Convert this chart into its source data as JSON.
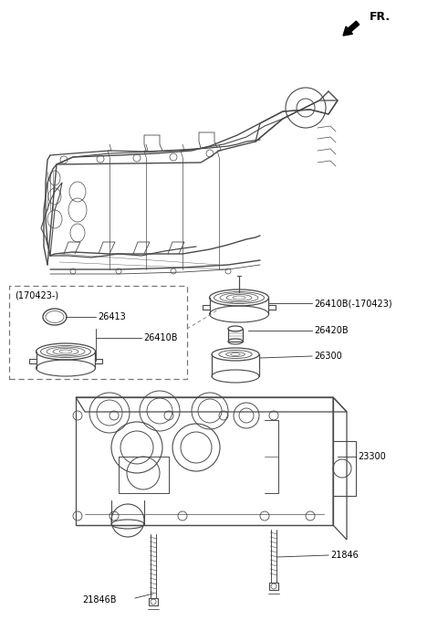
{
  "bg_color": "#ffffff",
  "line_color": "#4a4a4a",
  "labels": {
    "fr": "FR.",
    "part1": "26413",
    "part2": "26410B",
    "part3": "26410B(-170423)",
    "part4": "26420B",
    "part5": "26300",
    "part6": "23300",
    "part7": "21846",
    "part8": "21846B",
    "date_label": "(170423-)"
  },
  "figsize": [
    4.8,
    6.91
  ],
  "dpi": 100
}
